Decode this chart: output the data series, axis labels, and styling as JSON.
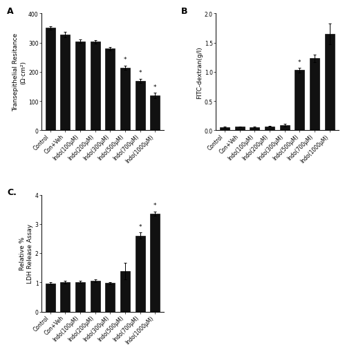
{
  "panel_A": {
    "categories": [
      "Control",
      "Con+Veh",
      "Indo(100µM)",
      "Indo(200µM)",
      "Indo(300µM)",
      "Indo(500µM)",
      "Indo(700µM)",
      "Indo(1000µM)"
    ],
    "values": [
      350,
      327,
      305,
      303,
      280,
      215,
      170,
      120
    ],
    "errors": [
      7,
      9,
      6,
      6,
      6,
      7,
      7,
      9
    ],
    "sig": [
      false,
      false,
      false,
      false,
      false,
      true,
      true,
      true
    ],
    "ylabel": "Transepithelial Resitance\n(Ω·cm²)",
    "ylim": [
      0,
      400
    ],
    "yticks": [
      0,
      100,
      200,
      300,
      400
    ],
    "title": "A"
  },
  "panel_B": {
    "categories": [
      "Control",
      "Con+Veh",
      "Indo(100µM)",
      "Indo(200µM)",
      "Indo(300µM)",
      "Indo(500µM)",
      "Indo(700µM)",
      "Indo(1000µM)"
    ],
    "values": [
      0.05,
      0.06,
      0.05,
      0.07,
      0.09,
      1.03,
      1.23,
      1.65
    ],
    "errors": [
      0.01,
      0.01,
      0.01,
      0.01,
      0.02,
      0.04,
      0.07,
      0.18
    ],
    "sig": [
      false,
      false,
      false,
      false,
      false,
      true,
      false,
      false
    ],
    "ylabel": "FITC-dextran(g/l)",
    "ylim": [
      0,
      2.0
    ],
    "yticks": [
      0.0,
      0.5,
      1.0,
      1.5,
      2.0
    ],
    "title": "B"
  },
  "panel_C": {
    "categories": [
      "Control",
      "Con+Veh",
      "Indo(100µM)",
      "Indo(200µM)",
      "Indo(300µM)",
      "Indo(500µM)",
      "Indo(700µM)",
      "Indo(1000µM)"
    ],
    "values": [
      0.97,
      1.01,
      1.02,
      1.05,
      0.98,
      1.38,
      2.6,
      3.35
    ],
    "errors": [
      0.04,
      0.04,
      0.04,
      0.05,
      0.04,
      0.28,
      0.1,
      0.08
    ],
    "sig": [
      false,
      false,
      false,
      false,
      false,
      false,
      true,
      true
    ],
    "ylabel": "Relative %\nLDH Release Assay",
    "ylim": [
      0,
      4
    ],
    "yticks": [
      0,
      1,
      2,
      3,
      4
    ],
    "title": "C."
  },
  "bar_color": "#111111",
  "bar_edge_color": "#111111",
  "background_color": "#ffffff",
  "tick_label_fontsize": 5.5,
  "ylabel_fontsize": 6.5,
  "panel_label_fontsize": 9,
  "bar_width": 0.65
}
